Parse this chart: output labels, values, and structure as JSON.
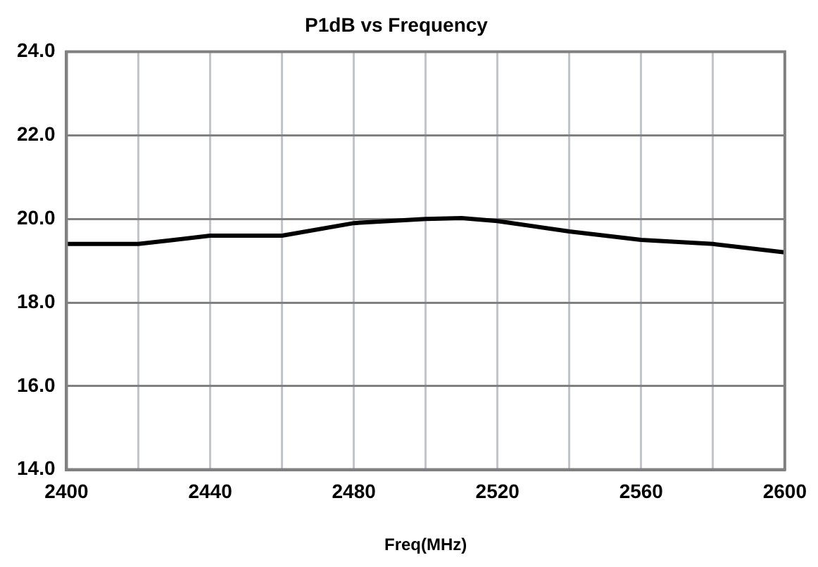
{
  "chart_data": {
    "type": "line",
    "title": "P1dB vs Frequency",
    "xlabel": "Freq(MHz)",
    "x": [
      2400,
      2420,
      2430,
      2440,
      2460,
      2480,
      2500,
      2510,
      2520,
      2540,
      2560,
      2580,
      2600
    ],
    "series": [
      {
        "color": "#000000",
        "values": [
          19.4,
          19.4,
          19.5,
          19.6,
          19.6,
          19.9,
          20.0,
          20.02,
          19.95,
          19.7,
          19.5,
          19.4,
          19.2
        ]
      }
    ],
    "xlim": [
      2400,
      2600
    ],
    "xticks": [
      2400,
      {
        "value": 2420,
        "label": null
      },
      2440,
      {
        "value": 2460,
        "label": null
      },
      2480,
      {
        "value": 2500,
        "label": null
      },
      2520,
      {
        "value": 2540,
        "label": null
      },
      2560,
      {
        "value": 2580,
        "label": null
      },
      2600
    ],
    "ylim": [
      14,
      24
    ],
    "yticks": [
      {
        "value": 14,
        "label": "14.0"
      },
      {
        "value": 16,
        "label": "16.0"
      },
      {
        "value": 18,
        "label": "18.0"
      },
      {
        "value": 20,
        "label": "20.0"
      },
      {
        "value": 22,
        "label": "22.0"
      },
      {
        "value": 24,
        "label": "24.0"
      }
    ],
    "grid": true,
    "marker": "none",
    "line_style": "solid"
  }
}
